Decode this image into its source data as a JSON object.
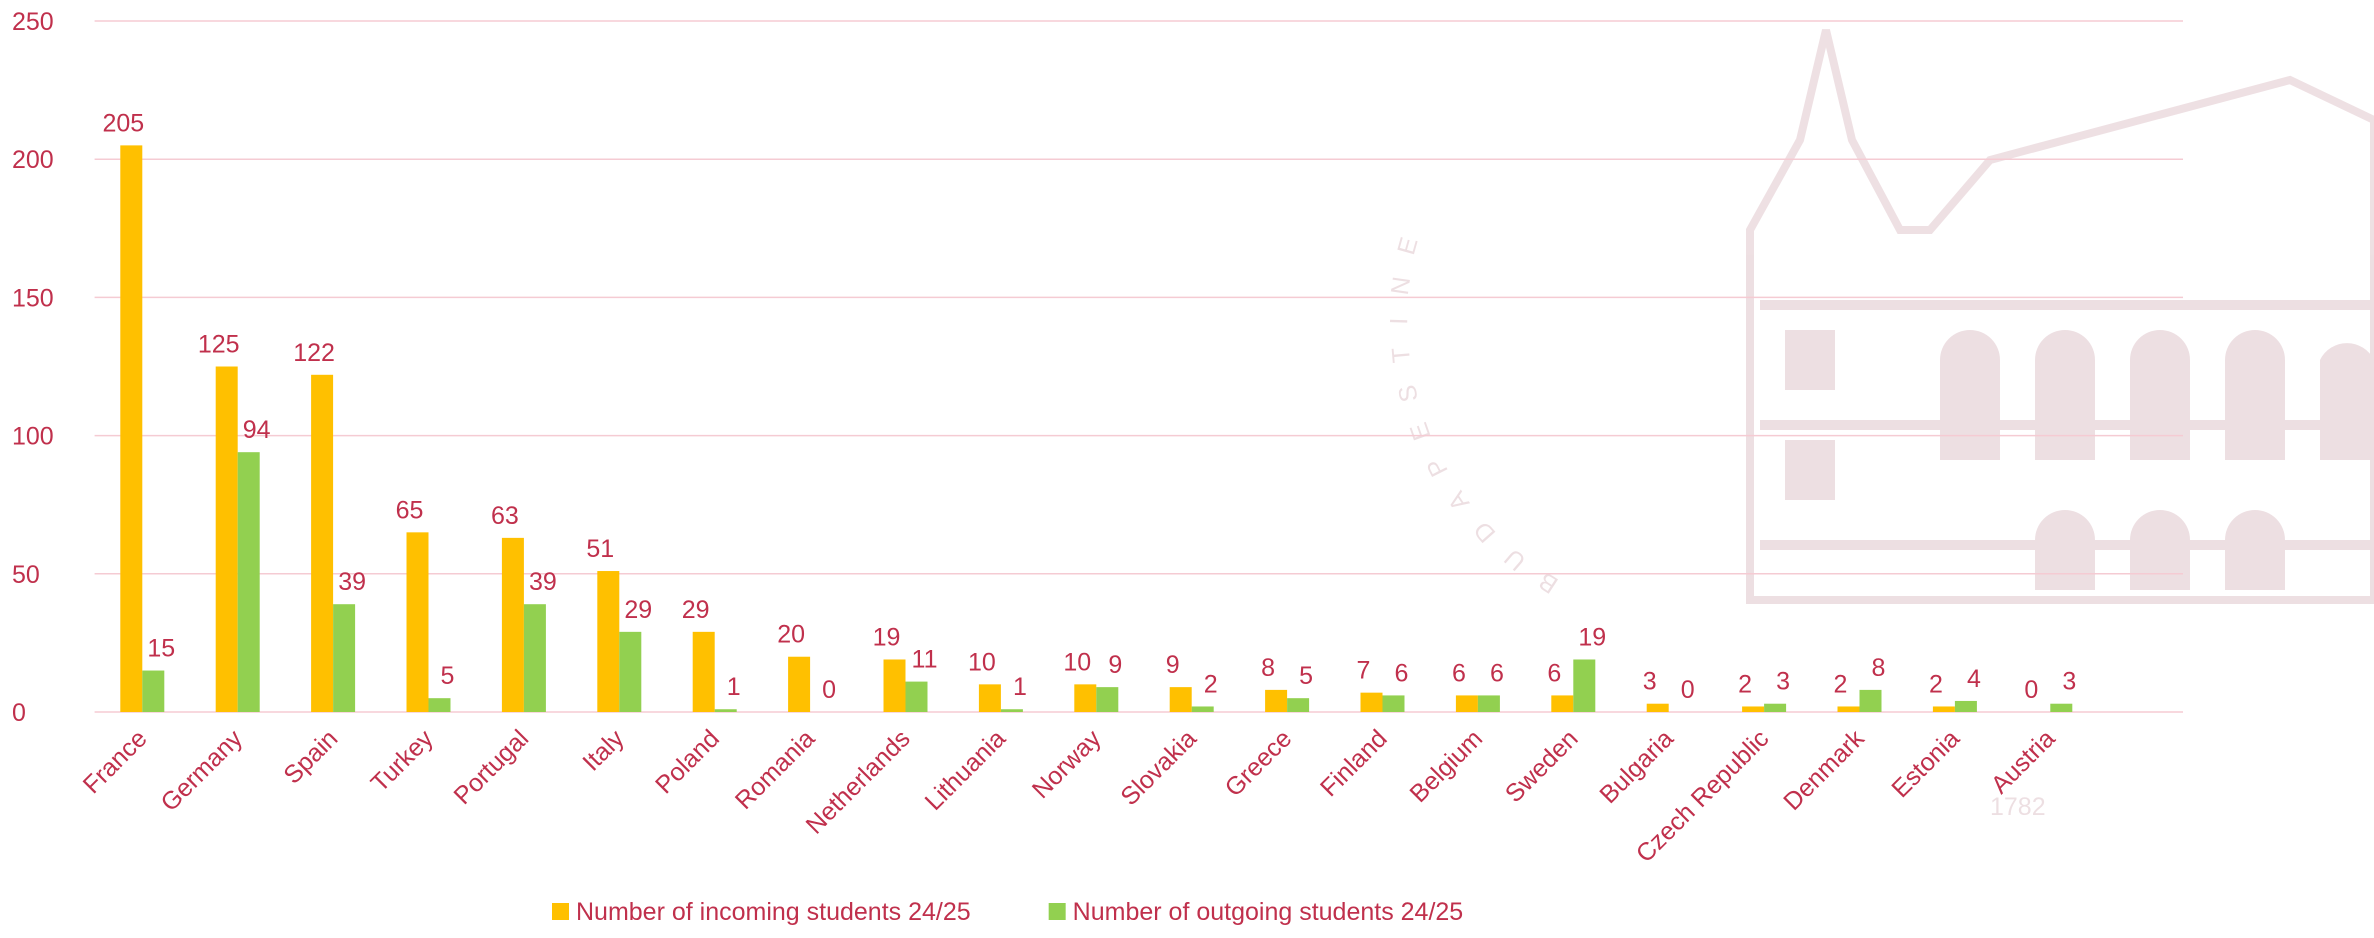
{
  "chart_data": {
    "type": "bar",
    "categories": [
      "France",
      "Germany",
      "Spain",
      "Turkey",
      "Portugal",
      "Italy",
      "Poland",
      "Romania",
      "Netherlands",
      "Lithuania",
      "Norway",
      "Slovakia",
      "Greece",
      "Finland",
      "Belgium",
      "Sweden",
      "Bulgaria",
      "Czech Republic",
      "Denmark",
      "Estonia",
      "Austria"
    ],
    "series": [
      {
        "name": "Number of incoming students 24/25",
        "color": "#ffc000",
        "values": [
          205,
          125,
          122,
          65,
          63,
          51,
          29,
          20,
          19,
          10,
          10,
          9,
          8,
          7,
          6,
          6,
          3,
          2,
          2,
          2,
          0
        ]
      },
      {
        "name": "Number of outgoing students 24/25",
        "color": "#92d050",
        "values": [
          15,
          94,
          39,
          5,
          39,
          29,
          1,
          0,
          11,
          1,
          9,
          2,
          5,
          6,
          6,
          19,
          0,
          3,
          8,
          4,
          3
        ]
      }
    ],
    "ylim": [
      0,
      250
    ],
    "yticks": [
      0,
      50,
      100,
      150,
      200,
      250
    ],
    "grid": true,
    "legend": "bottom"
  },
  "watermark": {
    "year": "1782",
    "arc_text": "BUDAPESTINE"
  }
}
